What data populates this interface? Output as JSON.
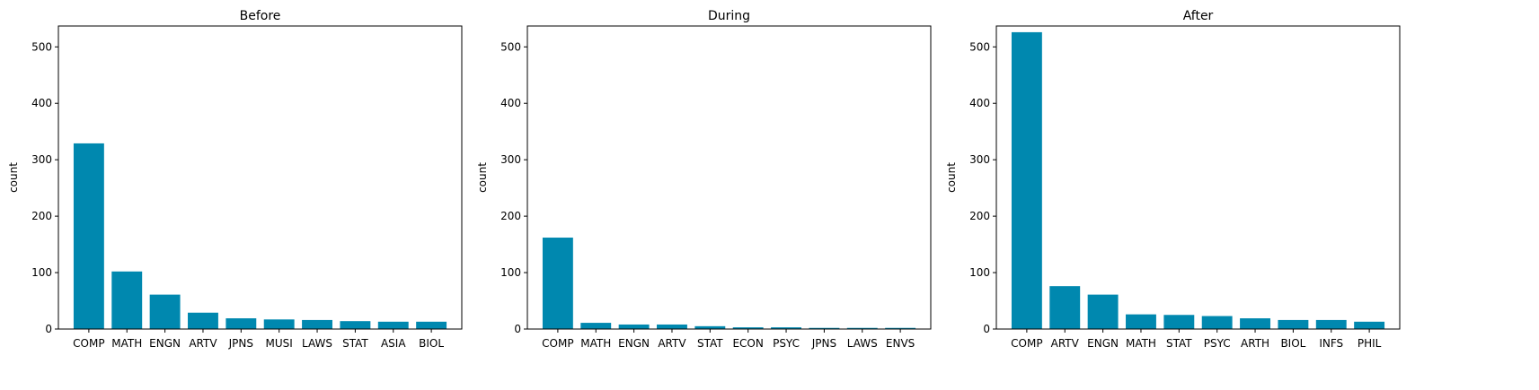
{
  "bar_color": "#0088AF",
  "chart_data": [
    {
      "type": "bar",
      "title": "Before",
      "xlabel": "",
      "ylabel": "count",
      "ylim": [
        0,
        537
      ],
      "yticks": [
        0,
        100,
        200,
        300,
        400,
        500
      ],
      "categories": [
        "COMP",
        "MATH",
        "ENGN",
        "ARTV",
        "JPNS",
        "MUSI",
        "LAWS",
        "STAT",
        "ASIA",
        "BIOL"
      ],
      "values": [
        329,
        102,
        61,
        29,
        19,
        17,
        16,
        14,
        13,
        13
      ],
      "grid": false
    },
    {
      "type": "bar",
      "title": "During",
      "xlabel": "",
      "ylabel": "count",
      "ylim": [
        0,
        537
      ],
      "yticks": [
        0,
        100,
        200,
        300,
        400,
        500
      ],
      "categories": [
        "COMP",
        "MATH",
        "ENGN",
        "ARTV",
        "STAT",
        "ECON",
        "PSYC",
        "JPNS",
        "LAWS",
        "ENVS"
      ],
      "values": [
        162,
        11,
        8,
        8,
        5,
        3,
        3,
        2,
        2,
        2
      ],
      "grid": false
    },
    {
      "type": "bar",
      "title": "After",
      "xlabel": "",
      "ylabel": "count",
      "ylim": [
        0,
        537
      ],
      "yticks": [
        0,
        100,
        200,
        300,
        400,
        500
      ],
      "categories": [
        "COMP",
        "ARTV",
        "ENGN",
        "MATH",
        "STAT",
        "PSYC",
        "ARTH",
        "BIOL",
        "INFS",
        "PHIL"
      ],
      "values": [
        526,
        76,
        61,
        26,
        25,
        23,
        19,
        16,
        16,
        13
      ],
      "grid": false
    }
  ]
}
